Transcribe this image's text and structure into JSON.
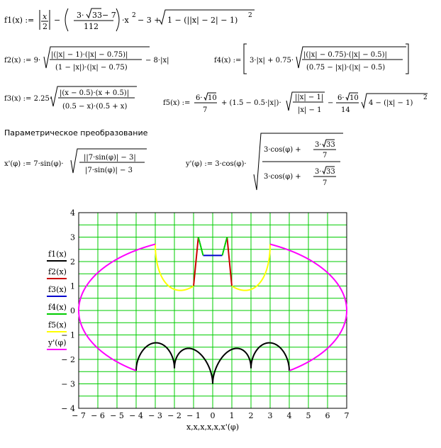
{
  "formulas": {
    "f1": {
      "name": "f1(x) :=",
      "a": "x",
      "b": "2",
      "c_num": "3·",
      "c_num2": "33",
      "c_num3": " − 7",
      "c_den": "112",
      "rest": "·x",
      "sq": "2",
      "rest2": " − 3 + ",
      "rad": "1 − (||x| − 2| − 1)",
      "rad_sq": "2"
    },
    "f2": {
      "name": "f2(x) := 9·",
      "num": "|(|x| − 1)·(|x| − 0.75)|",
      "den": "(1 − |x|)·(|x| − 0.75)",
      "tail": "− 8·|x|"
    },
    "f4": {
      "name": "f4(x) :=",
      "head": "3·|x| + 0.75·",
      "num": "|(|x| − 0.75)·(|x| − 0.5)|",
      "den": "(0.75 − |x|)·(|x| − 0.5)"
    },
    "f3": {
      "name": "f3(x) := 2.25·",
      "num": "|(x − 0.5)·(x + 0.5)|",
      "den": "(0.5 − x)·(0.5 + x)"
    },
    "f5": {
      "name": "f5(x) :=",
      "n1a": "6·",
      "n1b": "10",
      "d1": "7",
      "mid": "+ (1.5 − 0.5·|x|)·",
      "num": "||x| − 1|",
      "den": "|x| − 1",
      "minus": "−",
      "n2a": "6·",
      "n2b": "10",
      "d2": "14",
      "tail": "4 − (|x| − 1)",
      "tail_sq": "2"
    },
    "section_title": "Параметрическое преобразование",
    "xp": {
      "name": "x'(φ) := 7·sin(φ)·",
      "num": "||7·sin(φ)| − 3|",
      "den": "|7·sin(φ)| − 3"
    },
    "yp": {
      "name": "y'(φ) := 3·cos(φ)·",
      "num_a": "3·cos(φ) + ",
      "num_b": "3·",
      "num_c": "33",
      "num_d": "7",
      "den_a": "3·cos(φ) + ",
      "den_b": "3·",
      "den_c": "33",
      "den_d": "7"
    }
  },
  "chart_data": {
    "type": "line",
    "title": "",
    "xlabel": "x,x,x,x,x,x'(φ)",
    "ylabel": "",
    "xlim": [
      -7,
      7
    ],
    "ylim": [
      -4,
      4
    ],
    "x_ticks": [
      "− 7",
      "− 6",
      "− 5",
      "− 4",
      "− 3",
      "− 2",
      "− 1",
      "0",
      "1",
      "2",
      "3",
      "4",
      "5",
      "6",
      "7"
    ],
    "x_tick_values": [
      -7,
      -6,
      -5,
      -4,
      -3,
      -2,
      -1,
      0,
      1,
      2,
      3,
      4,
      5,
      6,
      7
    ],
    "y_ticks": [
      "4",
      "3",
      "2",
      "1",
      "0",
      "− 1",
      "− 2",
      "− 3",
      "− 4"
    ],
    "y_tick_values": [
      4,
      3,
      2,
      1,
      0,
      -1,
      -2,
      -3,
      -4
    ],
    "grid": true,
    "grid_color": "#00cc00",
    "legend_position": "left",
    "series": [
      {
        "name": "f1(x)",
        "color": "#000000",
        "domain": [
          -4,
          4
        ],
        "formula": "f1"
      },
      {
        "name": "f2(x)",
        "color": "#cc0000",
        "domain": [
          -1,
          1
        ],
        "formula": "f2"
      },
      {
        "name": "f3(x)",
        "color": "#0000cc",
        "domain": [
          -0.5,
          0.5
        ],
        "formula": "f3"
      },
      {
        "name": "f4(x)",
        "color": "#00cc00",
        "domain": [
          -0.75,
          0.75
        ],
        "formula": "f4"
      },
      {
        "name": "f5(x)",
        "color": "#ffff00",
        "domain": [
          -3,
          3
        ],
        "formula": "f5"
      },
      {
        "name": "y'(φ)",
        "color": "#ff00ff",
        "domain": [
          0,
          6.2832
        ],
        "formula": "param"
      }
    ]
  }
}
